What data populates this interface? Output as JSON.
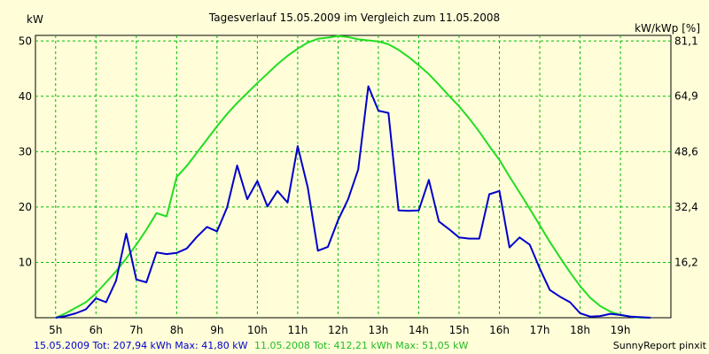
{
  "chart_data": {
    "type": "line",
    "title": "Tagesverlauf 15.05.2009 im Vergleich zum 11.05.2008",
    "ylabel_left": "kW",
    "ylabel_right": "kW/kWp [%]",
    "ylim": [
      0,
      51
    ],
    "yticks_left": [
      10,
      20,
      30,
      40,
      50
    ],
    "yticks_right_values": [
      16.2,
      32.4,
      48.6,
      64.9,
      81.1
    ],
    "yticks_right_labels": [
      "16,2",
      "32,4",
      "48,6",
      "64,9",
      "81,1"
    ],
    "xlim": [
      4.5,
      20.25
    ],
    "xticks": [
      5,
      6,
      7,
      8,
      9,
      10,
      11,
      12,
      13,
      14,
      15,
      16,
      17,
      18,
      19
    ],
    "xtick_labels": [
      "5h",
      "6h",
      "7h",
      "8h",
      "9h",
      "10h",
      "11h",
      "12h",
      "13h",
      "14h",
      "15h",
      "16h",
      "17h",
      "18h",
      "19h"
    ],
    "grid": true,
    "colors": {
      "series_2009": "#0000cc",
      "series_2008": "#22dd22",
      "grid": "#00bb00",
      "background": "#fffed9"
    },
    "series": [
      {
        "name": "15.05.2009",
        "color": "#0000cc",
        "x": [
          5.0,
          5.25,
          5.5,
          5.75,
          6.0,
          6.25,
          6.5,
          6.75,
          7.0,
          7.25,
          7.5,
          7.75,
          8.0,
          8.25,
          8.5,
          8.75,
          9.0,
          9.25,
          9.5,
          9.75,
          10.0,
          10.25,
          10.5,
          10.75,
          11.0,
          11.25,
          11.5,
          11.75,
          12.0,
          12.25,
          12.5,
          12.75,
          13.0,
          13.25,
          13.5,
          13.75,
          14.0,
          14.25,
          14.5,
          14.75,
          15.0,
          15.25,
          15.5,
          15.75,
          16.0,
          16.25,
          16.5,
          16.75,
          17.0,
          17.25,
          17.5,
          17.75,
          18.0,
          18.25,
          18.5,
          18.75,
          19.0,
          19.25,
          19.5,
          19.75
        ],
        "y": [
          0.0,
          0.3,
          0.8,
          1.5,
          3.5,
          2.8,
          6.7,
          15.2,
          6.9,
          6.4,
          11.8,
          11.5,
          11.7,
          12.5,
          14.6,
          16.4,
          15.6,
          19.9,
          27.5,
          21.4,
          24.7,
          20.1,
          22.9,
          20.8,
          31.0,
          23.5,
          12.1,
          12.8,
          17.6,
          21.4,
          26.8,
          41.8,
          37.4,
          37.0,
          19.4,
          19.3,
          19.4,
          24.9,
          17.4,
          16.0,
          14.5,
          14.3,
          14.3,
          22.3,
          22.9,
          12.7,
          14.5,
          13.2,
          8.9,
          5.0,
          3.8,
          2.8,
          0.8,
          0.2,
          0.3,
          0.7,
          0.5,
          0.2,
          0.1,
          0.0
        ]
      },
      {
        "name": "11.05.2008",
        "color": "#22dd22",
        "x": [
          5.0,
          5.25,
          5.5,
          5.75,
          6.0,
          6.25,
          6.5,
          6.75,
          7.0,
          7.25,
          7.5,
          7.75,
          8.0,
          8.25,
          8.5,
          8.75,
          9.0,
          9.25,
          9.5,
          9.75,
          10.0,
          10.25,
          10.5,
          10.75,
          11.0,
          11.25,
          11.5,
          11.75,
          12.0,
          12.25,
          12.5,
          12.75,
          13.0,
          13.25,
          13.5,
          13.75,
          14.0,
          14.25,
          14.5,
          14.75,
          15.0,
          15.25,
          15.5,
          15.75,
          16.0,
          16.25,
          16.5,
          16.75,
          17.0,
          17.25,
          17.5,
          17.75,
          18.0,
          18.25,
          18.5,
          18.75,
          19.0,
          19.25,
          19.5,
          19.75
        ],
        "y": [
          0.0,
          0.8,
          1.8,
          2.8,
          4.4,
          6.4,
          8.4,
          10.7,
          13.2,
          15.9,
          18.9,
          18.3,
          25.4,
          27.4,
          29.8,
          32.2,
          34.6,
          36.8,
          38.8,
          40.6,
          42.4,
          44.1,
          45.8,
          47.3,
          48.6,
          49.7,
          50.4,
          50.6,
          50.9,
          50.7,
          50.3,
          50.1,
          49.9,
          49.4,
          48.4,
          47.1,
          45.6,
          44.0,
          42.1,
          40.1,
          38.2,
          36.0,
          33.6,
          31.0,
          28.5,
          25.5,
          22.6,
          19.7,
          16.7,
          13.7,
          10.9,
          8.2,
          5.7,
          3.6,
          2.1,
          1.1,
          0.5,
          0.2,
          0.0,
          0.0
        ]
      }
    ],
    "footer": {
      "series_2009_summary": "15.05.2009 Tot: 207,94 kWh Max: 41,80 kW",
      "series_2008_summary": "11.05.2008 Tot: 412,21 kWh Max: 51,05 kW",
      "brand": "SunnyReport pinxit"
    }
  }
}
